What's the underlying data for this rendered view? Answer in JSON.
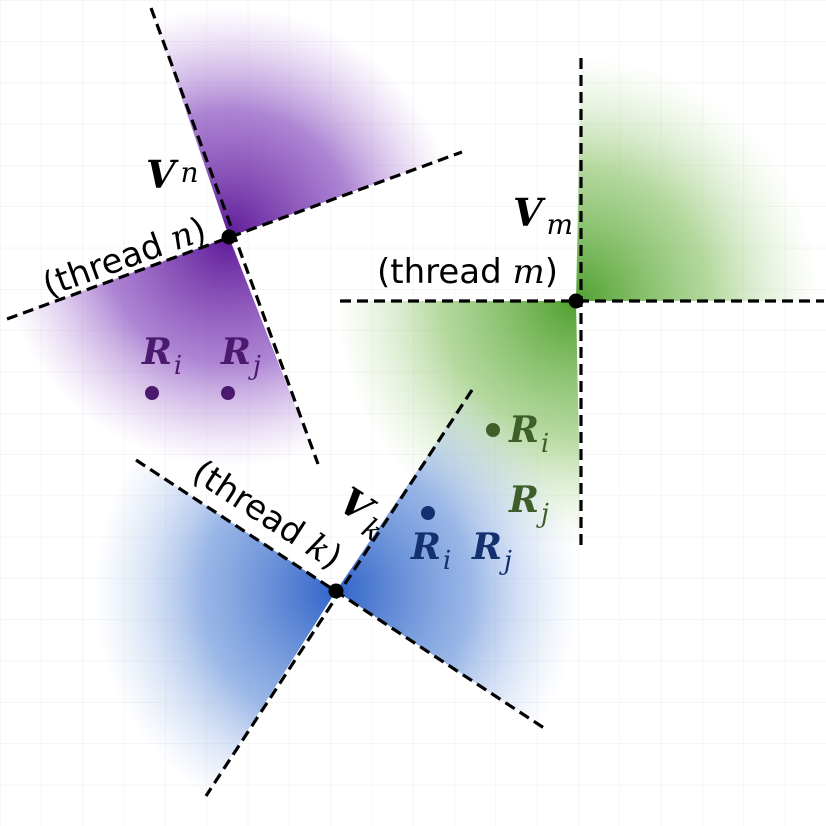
{
  "colors": {
    "purple": "#6a2a9e",
    "purple_dark": "#4b1a6e",
    "green": "#5aa83c",
    "green_dark": "#3f5f2a",
    "blue": "#3a6fcc",
    "blue_dark": "#15306e",
    "grid": "#ececec"
  },
  "vertices": {
    "n": {
      "symbol": "V",
      "sub": "n",
      "thread_prefix": "(thread ",
      "thread_var": "n",
      "thread_suffix": ")"
    },
    "m": {
      "symbol": "V",
      "sub": "m",
      "thread_prefix": "(thread ",
      "thread_var": "m",
      "thread_suffix": ")"
    },
    "k": {
      "symbol": "V",
      "sub": "k",
      "thread_prefix": "(thread ",
      "thread_var": "k",
      "thread_suffix": ")"
    }
  },
  "points": {
    "purple": [
      {
        "symbol": "R",
        "sub": "i"
      },
      {
        "symbol": "R",
        "sub": "j"
      }
    ],
    "green": [
      {
        "symbol": "R",
        "sub": "i"
      },
      {
        "symbol": "R",
        "sub": "j"
      }
    ],
    "blue": [
      {
        "symbol": "R",
        "sub": "i"
      },
      {
        "symbol": "R",
        "sub": "j"
      }
    ]
  }
}
